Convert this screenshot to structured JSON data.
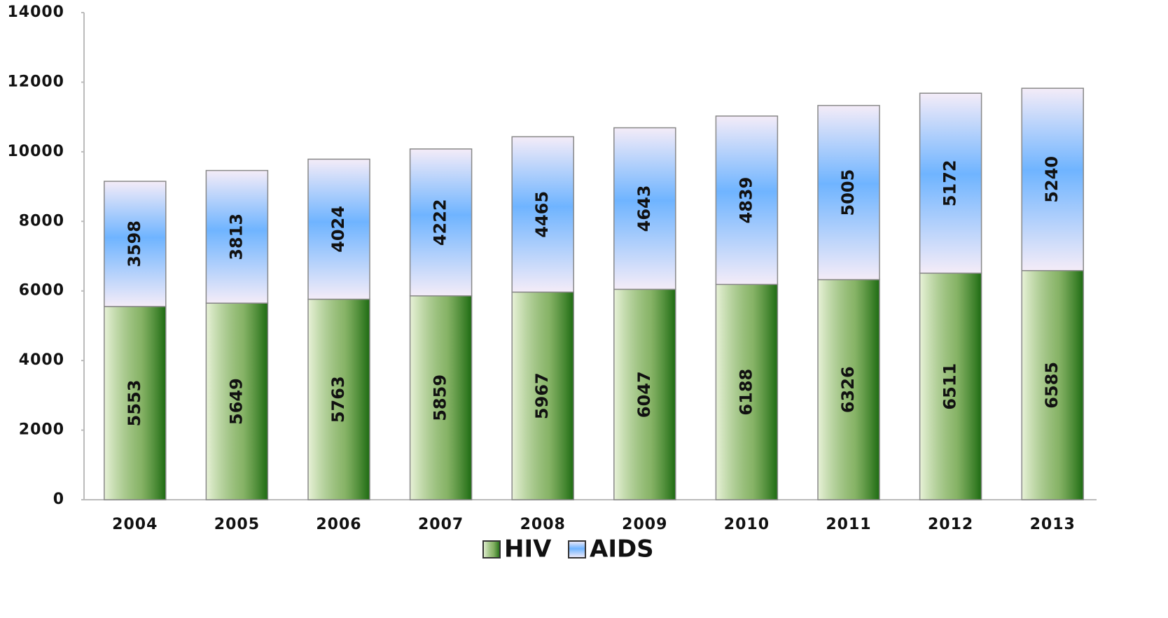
{
  "chart_data": {
    "type": "stacked_bar",
    "categories": [
      "2004",
      "2005",
      "2006",
      "2007",
      "2008",
      "2009",
      "2010",
      "2011",
      "2012",
      "2013"
    ],
    "series": [
      {
        "name": "HIV",
        "color": "#5f9a34",
        "values": [
          5553,
          5649,
          5763,
          5859,
          5967,
          6047,
          6188,
          6326,
          6511,
          6585
        ]
      },
      {
        "name": "AIDS",
        "color": "#6fb4ff",
        "values": [
          3598,
          3813,
          4024,
          4222,
          4465,
          4643,
          4839,
          5005,
          5172,
          5240
        ]
      }
    ],
    "ylim": [
      0,
      14000
    ],
    "yticks": [
      0,
      2000,
      4000,
      6000,
      8000,
      10000,
      12000,
      14000
    ],
    "legend": "bottom"
  }
}
